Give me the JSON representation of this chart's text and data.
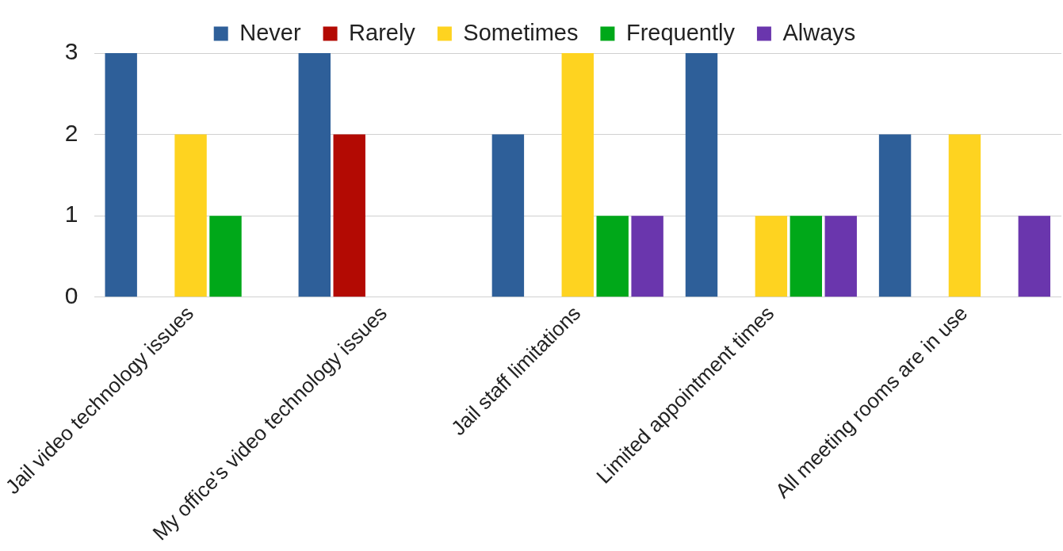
{
  "chart_data": {
    "type": "bar",
    "categories": [
      "Jail video technology issues",
      "My office's video technology issues",
      "Jail staff limitations",
      "Limited appointment times",
      "All meeting rooms are in use"
    ],
    "series": [
      {
        "name": "Never",
        "color": "#2e5f99",
        "values": [
          3,
          3,
          2,
          3,
          2
        ]
      },
      {
        "name": "Rarely",
        "color": "#b30a03",
        "values": [
          0,
          2,
          0,
          0,
          0
        ]
      },
      {
        "name": "Sometimes",
        "color": "#fed320",
        "values": [
          2,
          0,
          3,
          1,
          2
        ]
      },
      {
        "name": "Frequently",
        "color": "#00a819",
        "values": [
          1,
          0,
          1,
          1,
          0
        ]
      },
      {
        "name": "Always",
        "color": "#6a36ad",
        "values": [
          0,
          0,
          1,
          1,
          1
        ]
      }
    ],
    "ylim": [
      0,
      3
    ],
    "yticks": [
      0,
      1,
      2,
      3
    ],
    "grid": "y",
    "legend": "top"
  }
}
